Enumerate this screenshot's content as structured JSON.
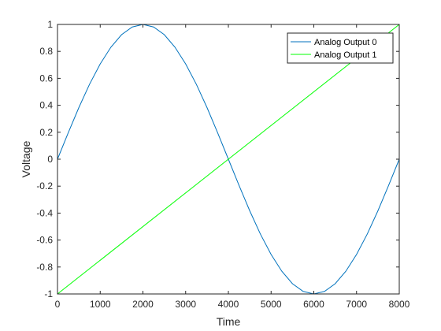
{
  "chart_data": {
    "type": "line",
    "xlabel": "Time",
    "ylabel": "Voltage",
    "xlim": [
      0,
      8000
    ],
    "ylim": [
      -1,
      1
    ],
    "xticks": [
      0,
      1000,
      2000,
      3000,
      4000,
      5000,
      6000,
      7000,
      8000
    ],
    "yticks": [
      -1,
      -0.8,
      -0.6,
      -0.4,
      -0.2,
      0,
      0.2,
      0.4,
      0.6,
      0.8,
      1
    ],
    "xtick_labels": [
      "0",
      "1000",
      "2000",
      "3000",
      "4000",
      "5000",
      "6000",
      "7000",
      "8000"
    ],
    "ytick_labels": [
      "-1",
      "-0.8",
      "-0.6",
      "-0.4",
      "-0.2",
      "0",
      "0.2",
      "0.4",
      "0.6",
      "0.8",
      "1"
    ],
    "grid": false,
    "legend_position": "top-right",
    "series": [
      {
        "name": "Analog Output 0",
        "color": "#0072BD",
        "x": [
          0,
          250,
          500,
          750,
          1000,
          1250,
          1500,
          1750,
          2000,
          2250,
          2500,
          2750,
          3000,
          3250,
          3500,
          3750,
          4000,
          4250,
          4500,
          4750,
          5000,
          5250,
          5500,
          5750,
          6000,
          6250,
          6500,
          6750,
          7000,
          7250,
          7500,
          7750,
          8000
        ],
        "y": [
          0,
          0.195,
          0.383,
          0.556,
          0.707,
          0.831,
          0.924,
          0.981,
          1,
          0.981,
          0.924,
          0.831,
          0.707,
          0.556,
          0.383,
          0.195,
          0,
          -0.195,
          -0.383,
          -0.556,
          -0.707,
          -0.831,
          -0.924,
          -0.981,
          -1,
          -0.981,
          -0.924,
          -0.831,
          -0.707,
          -0.556,
          -0.383,
          -0.195,
          0
        ]
      },
      {
        "name": "Analog Output 1",
        "color": "#00FF00",
        "x": [
          0,
          8000
        ],
        "y": [
          -1,
          1
        ]
      }
    ]
  }
}
